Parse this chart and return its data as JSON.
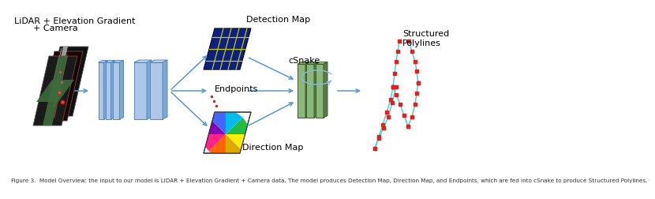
{
  "bg_color": "#ffffff",
  "arrow_color": "#5599cc",
  "cnn_face_color": "#aec6e8",
  "cnn_edge_color": "#5588bb",
  "cnn_side_color": "#7aaad0",
  "det_map_color": "#0d2080",
  "det_line_color": "#c8c800",
  "dir_colors": [
    "#ffff00",
    "#ddaa00",
    "#cc4400",
    "#ff3388",
    "#8800cc",
    "#4444ff",
    "#00ccee",
    "#22aa44"
  ],
  "snake_face": "#8ab87a",
  "snake_dark": "#5a7a4a",
  "snake_edge": "#3a5a2a",
  "polyline_color": "#55ccdd",
  "redpt_color": "#dd2222",
  "label_fontsize": 8.0,
  "caption_fontsize": 5.2,
  "caption": "Figure 3.  Model Overview: the input to our model is LiDAR + Elevation Gradient + Camera data. The model produces Detection Map, Direction Map, and Endpoints, which are fed into cSnake to produce Structured Polylines."
}
